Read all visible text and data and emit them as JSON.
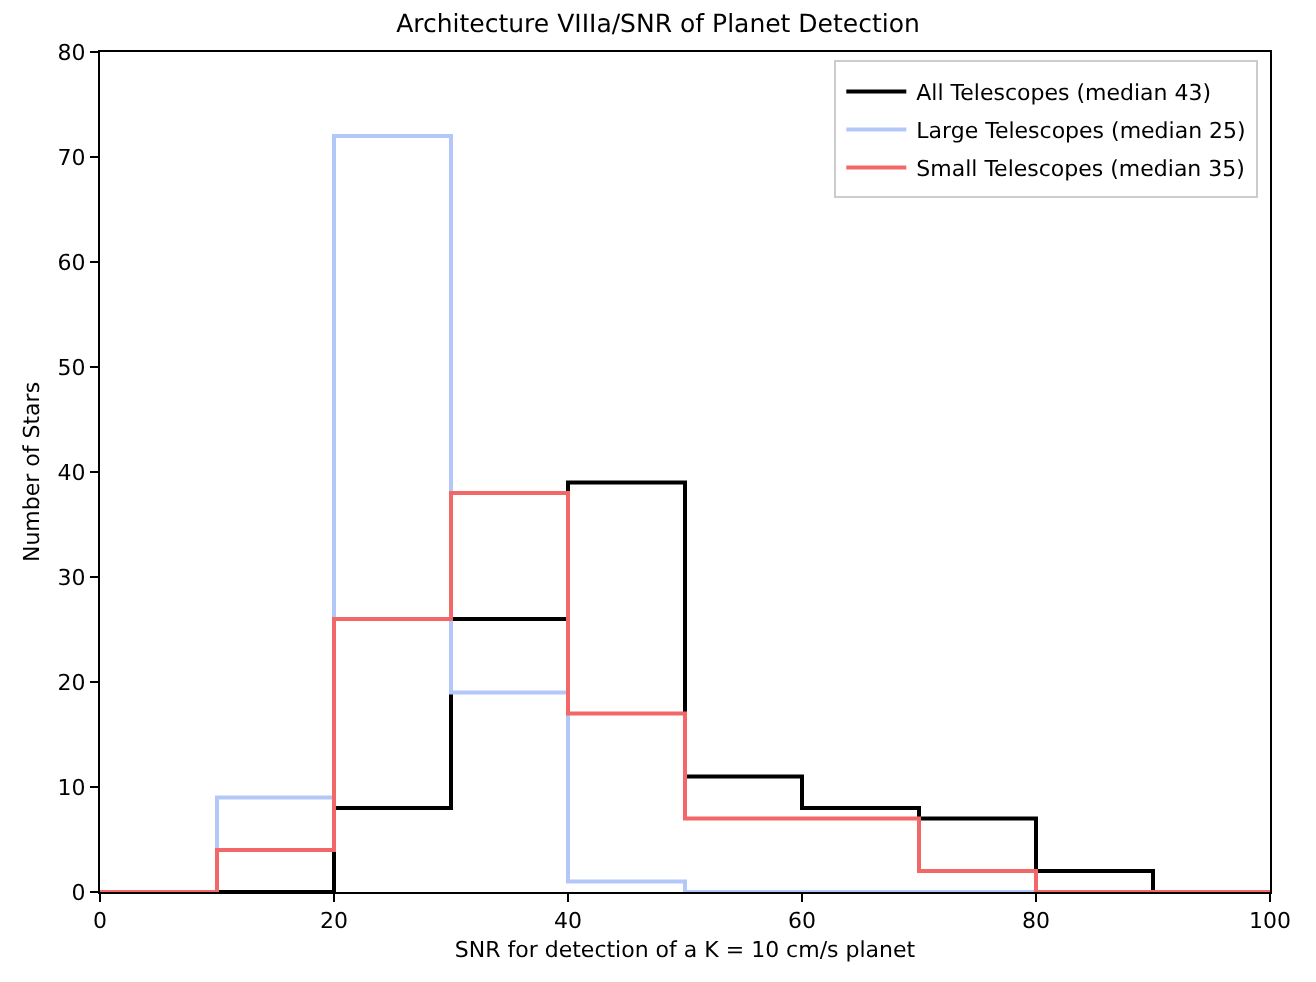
{
  "chart_data": {
    "type": "histogram",
    "title": "Architecture VIIIa/SNR of Planet Detection",
    "xlabel": "SNR for detection of a K = 10 cm/s planet",
    "ylabel": "Number of Stars",
    "bins": [
      0,
      10,
      20,
      30,
      40,
      50,
      60,
      70,
      80,
      90,
      100
    ],
    "series": [
      {
        "name": "All Telescopes (median 43)",
        "color": "#000000",
        "values": [
          0,
          0,
          8,
          26,
          39,
          11,
          8,
          7,
          2,
          0
        ]
      },
      {
        "name": "Large Telescopes (median 25)",
        "color": "#b3c8f8",
        "values": [
          0,
          9,
          72,
          19,
          1,
          0,
          0,
          0,
          0,
          0
        ]
      },
      {
        "name": "Small Telescopes (median 35)",
        "color": "#f26868",
        "values": [
          0,
          4,
          26,
          38,
          17,
          7,
          7,
          2,
          0,
          0
        ]
      }
    ],
    "xlim": [
      0,
      100
    ],
    "xticks": [
      0,
      20,
      40,
      60,
      80,
      100
    ],
    "ylim": [
      0,
      80
    ],
    "yticks": [
      0,
      10,
      20,
      30,
      40,
      50,
      60,
      70,
      80
    ],
    "legend": "top right"
  }
}
